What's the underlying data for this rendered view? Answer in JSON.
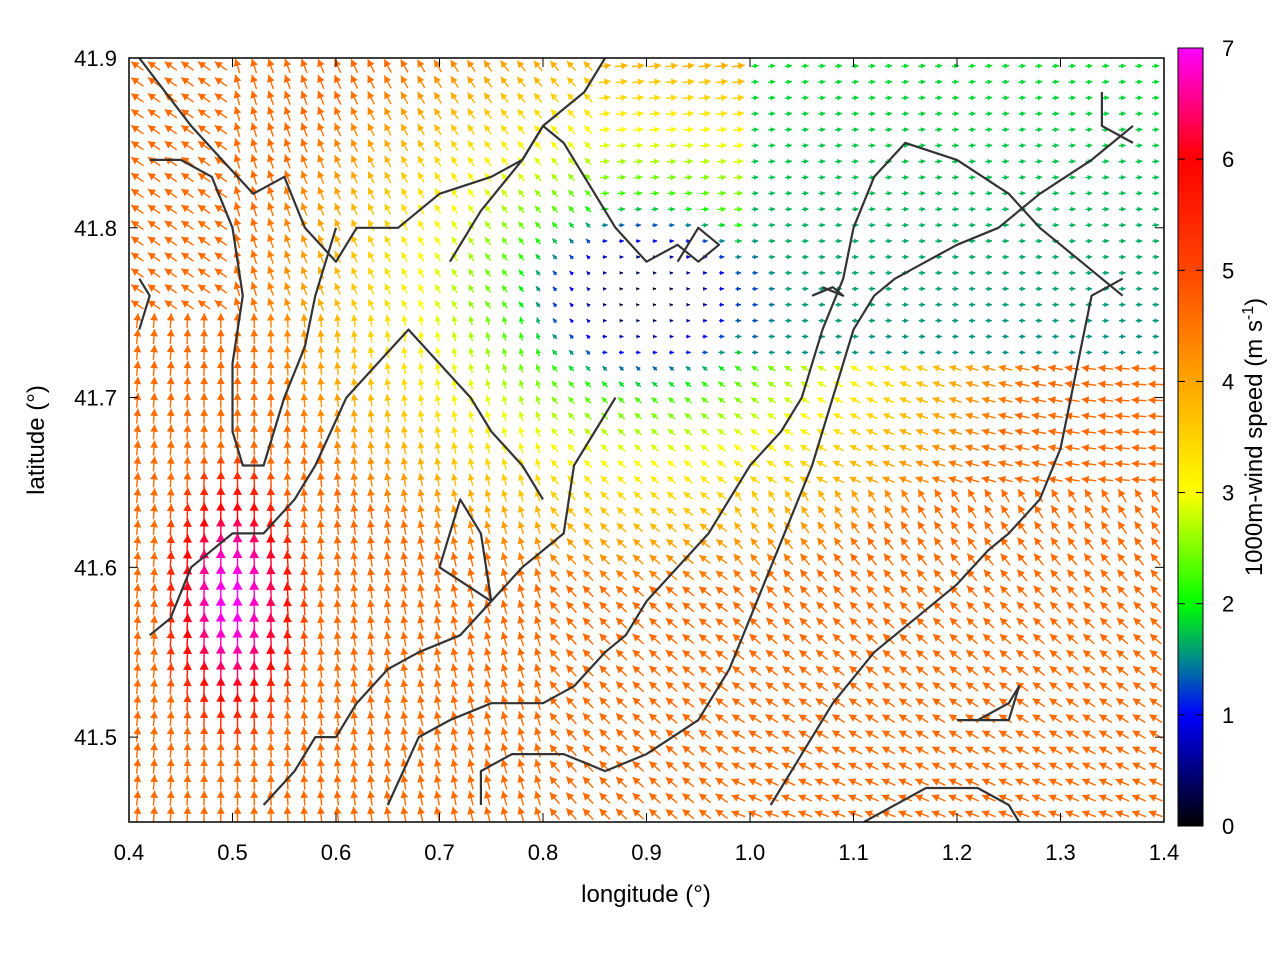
{
  "chart_data": {
    "type": "heatmap",
    "subtype": "wind-vector-field",
    "xlabel": "longitude (°)",
    "ylabel": "latitude (°)",
    "colorbar_label": "1000m-wind speed (m s-1)",
    "colorbar_label_main": "1000m-wind speed (m s",
    "colorbar_label_sup": "-1",
    "colorbar_label_close": ")",
    "xlim": [
      0.4,
      1.4
    ],
    "ylim": [
      41.45,
      41.9
    ],
    "cbar_lim": [
      0,
      7
    ],
    "xticks": [
      "0.4",
      "0.5",
      "0.6",
      "0.7",
      "0.8",
      "0.9",
      "1.0",
      "1.1",
      "1.2",
      "1.3",
      "1.4"
    ],
    "yticks": [
      "41.5",
      "41.6",
      "41.7",
      "41.8",
      "41.9"
    ],
    "cbar_ticks": [
      "0",
      "1",
      "2",
      "3",
      "4",
      "5",
      "6",
      "7"
    ],
    "grid": false,
    "colormap": [
      {
        "v": 0,
        "color": "#000000"
      },
      {
        "v": 1,
        "color": "#0000ff"
      },
      {
        "v": 1.5,
        "color": "#008b8b"
      },
      {
        "v": 2,
        "color": "#00ff00"
      },
      {
        "v": 3,
        "color": "#ffff00"
      },
      {
        "v": 4,
        "color": "#ffa500"
      },
      {
        "v": 5,
        "color": "#ff4500"
      },
      {
        "v": 6,
        "color": "#ff0000"
      },
      {
        "v": 7,
        "color": "#ff00ff"
      }
    ],
    "wind_field_description_values": {
      "calm_center": [
        0.9,
        41.76
      ],
      "jet_center": [
        0.5,
        41.58
      ],
      "jet_peak_speed": 7,
      "background_speed_northeast": 1.5,
      "background_speed_southeast": 4.5
    },
    "contour_lines": [
      [
        [
          0.41,
          41.9
        ],
        [
          0.46,
          41.86
        ],
        [
          0.49,
          41.84
        ],
        [
          0.52,
          41.82
        ],
        [
          0.55,
          41.83
        ],
        [
          0.57,
          41.8
        ],
        [
          0.6,
          41.78
        ],
        [
          0.62,
          41.8
        ],
        [
          0.66,
          41.8
        ],
        [
          0.7,
          41.82
        ],
        [
          0.75,
          41.83
        ],
        [
          0.78,
          41.84
        ],
        [
          0.8,
          41.86
        ],
        [
          0.84,
          41.88
        ],
        [
          0.86,
          41.9
        ]
      ],
      [
        [
          0.42,
          41.84
        ],
        [
          0.45,
          41.84
        ],
        [
          0.48,
          41.83
        ],
        [
          0.5,
          41.8
        ],
        [
          0.51,
          41.76
        ],
        [
          0.5,
          41.72
        ],
        [
          0.5,
          41.68
        ],
        [
          0.51,
          41.66
        ],
        [
          0.53,
          41.66
        ],
        [
          0.55,
          41.7
        ],
        [
          0.57,
          41.73
        ],
        [
          0.58,
          41.76
        ],
        [
          0.6,
          41.8
        ]
      ],
      [
        [
          0.42,
          41.56
        ],
        [
          0.44,
          41.57
        ],
        [
          0.46,
          41.6
        ],
        [
          0.5,
          41.62
        ],
        [
          0.53,
          41.62
        ],
        [
          0.56,
          41.64
        ],
        [
          0.58,
          41.66
        ],
        [
          0.61,
          41.7
        ],
        [
          0.64,
          41.72
        ],
        [
          0.67,
          41.74
        ],
        [
          0.7,
          41.72
        ],
        [
          0.73,
          41.7
        ],
        [
          0.75,
          41.68
        ],
        [
          0.78,
          41.66
        ],
        [
          0.8,
          41.64
        ]
      ],
      [
        [
          0.53,
          41.46
        ],
        [
          0.56,
          41.48
        ],
        [
          0.58,
          41.5
        ],
        [
          0.6,
          41.5
        ],
        [
          0.62,
          41.52
        ],
        [
          0.65,
          41.54
        ],
        [
          0.68,
          41.55
        ],
        [
          0.72,
          41.56
        ],
        [
          0.75,
          41.58
        ],
        [
          0.74,
          41.62
        ],
        [
          0.72,
          41.64
        ],
        [
          0.7,
          41.6
        ],
        [
          0.75,
          41.58
        ],
        [
          0.78,
          41.6
        ],
        [
          0.82,
          41.62
        ],
        [
          0.83,
          41.66
        ],
        [
          0.85,
          41.68
        ],
        [
          0.87,
          41.7
        ]
      ],
      [
        [
          0.65,
          41.46
        ],
        [
          0.68,
          41.5
        ],
        [
          0.71,
          41.51
        ],
        [
          0.75,
          41.52
        ],
        [
          0.8,
          41.52
        ],
        [
          0.83,
          41.53
        ],
        [
          0.86,
          41.55
        ],
        [
          0.88,
          41.56
        ],
        [
          0.9,
          41.58
        ],
        [
          0.93,
          41.6
        ],
        [
          0.96,
          41.62
        ],
        [
          0.98,
          41.64
        ],
        [
          1.0,
          41.66
        ],
        [
          1.03,
          41.68
        ],
        [
          1.05,
          41.7
        ],
        [
          1.07,
          41.74
        ],
        [
          1.09,
          41.77
        ],
        [
          1.1,
          41.8
        ],
        [
          1.12,
          41.83
        ],
        [
          1.15,
          41.85
        ],
        [
          1.2,
          41.84
        ],
        [
          1.25,
          41.82
        ],
        [
          1.28,
          41.8
        ],
        [
          1.32,
          41.78
        ],
        [
          1.36,
          41.76
        ]
      ],
      [
        [
          0.74,
          41.46
        ],
        [
          0.74,
          41.48
        ],
        [
          0.77,
          41.49
        ],
        [
          0.82,
          41.49
        ],
        [
          0.86,
          41.48
        ],
        [
          0.9,
          41.49
        ],
        [
          0.95,
          41.51
        ],
        [
          0.98,
          41.54
        ],
        [
          1.0,
          41.57
        ],
        [
          1.02,
          41.6
        ],
        [
          1.04,
          41.63
        ],
        [
          1.06,
          41.66
        ],
        [
          1.08,
          41.7
        ],
        [
          1.1,
          41.74
        ],
        [
          1.12,
          41.76
        ],
        [
          1.14,
          41.77
        ],
        [
          1.17,
          41.78
        ],
        [
          1.2,
          41.79
        ],
        [
          1.24,
          41.8
        ],
        [
          1.28,
          41.82
        ],
        [
          1.33,
          41.84
        ],
        [
          1.37,
          41.86
        ]
      ],
      [
        [
          1.02,
          41.46
        ],
        [
          1.05,
          41.49
        ],
        [
          1.08,
          41.52
        ],
        [
          1.12,
          41.55
        ],
        [
          1.16,
          41.57
        ],
        [
          1.2,
          41.59
        ],
        [
          1.23,
          41.61
        ],
        [
          1.25,
          41.62
        ],
        [
          1.28,
          41.64
        ],
        [
          1.3,
          41.67
        ],
        [
          1.31,
          41.7
        ],
        [
          1.32,
          41.73
        ],
        [
          1.33,
          41.76
        ],
        [
          1.36,
          41.77
        ]
      ],
      [
        [
          1.11,
          41.45
        ],
        [
          1.17,
          41.47
        ],
        [
          1.22,
          41.47
        ],
        [
          1.25,
          41.46
        ],
        [
          1.26,
          41.45
        ]
      ],
      [
        [
          1.2,
          41.51
        ],
        [
          1.22,
          41.51
        ],
        [
          1.25,
          41.52
        ],
        [
          1.26,
          41.53
        ],
        [
          1.25,
          41.51
        ],
        [
          1.2,
          41.51
        ]
      ],
      [
        [
          0.41,
          41.74
        ],
        [
          0.42,
          41.76
        ],
        [
          0.41,
          41.77
        ]
      ],
      [
        [
          1.06,
          41.76
        ],
        [
          1.08,
          41.765
        ],
        [
          1.09,
          41.76
        ],
        [
          1.07,
          41.765
        ]
      ],
      [
        [
          0.93,
          41.78
        ],
        [
          0.95,
          41.8
        ],
        [
          0.97,
          41.79
        ],
        [
          0.95,
          41.78
        ],
        [
          0.93,
          41.79
        ],
        [
          0.9,
          41.78
        ],
        [
          0.87,
          41.8
        ],
        [
          0.85,
          41.82
        ],
        [
          0.82,
          41.85
        ],
        [
          0.8,
          41.86
        ],
        [
          0.78,
          41.84
        ],
        [
          0.74,
          41.81
        ],
        [
          0.71,
          41.78
        ]
      ],
      [
        [
          1.34,
          41.88
        ],
        [
          1.34,
          41.86
        ],
        [
          1.37,
          41.85
        ]
      ]
    ]
  }
}
